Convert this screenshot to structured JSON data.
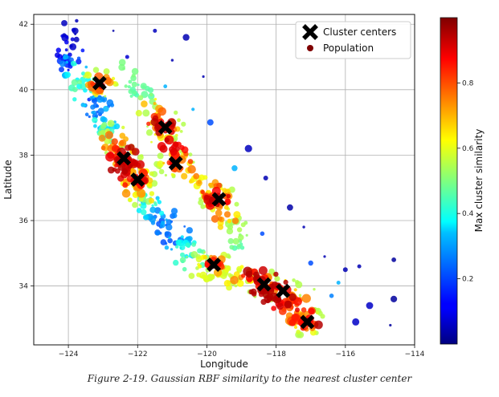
{
  "caption": "Figure 2-19. Gaussian RBF similarity to the nearest cluster center",
  "chart_data": {
    "type": "scatter",
    "xlabel": "Longitude",
    "ylabel": "Latitude",
    "xlim": [
      -125,
      -114
    ],
    "ylim": [
      32.2,
      42.3
    ],
    "xticks": [
      -124,
      -122,
      -120,
      -118,
      -116,
      -114
    ],
    "xtick_labels": [
      "−124",
      "−122",
      "−120",
      "−118",
      "−116",
      "−114"
    ],
    "yticks": [
      34,
      36,
      38,
      40,
      42
    ],
    "ytick_labels": [
      "34",
      "36",
      "38",
      "40",
      "42"
    ],
    "grid": true,
    "legend": {
      "position": "top-right",
      "entries": [
        "Cluster centers",
        "Population"
      ]
    },
    "colorbar": {
      "label": "Max cluster similarity",
      "colormap": "jet",
      "range": [
        0,
        1
      ],
      "ticks": [
        0.2,
        0.4,
        0.6,
        0.8
      ],
      "tick_labels": [
        "0.2",
        "0.4",
        "0.6",
        "0.8"
      ]
    },
    "cluster_centers": [
      {
        "lon": -123.1,
        "lat": 40.2
      },
      {
        "lon": -121.2,
        "lat": 38.85
      },
      {
        "lon": -122.4,
        "lat": 37.9
      },
      {
        "lon": -120.9,
        "lat": 37.75
      },
      {
        "lon": -122.0,
        "lat": 37.25
      },
      {
        "lon": -119.65,
        "lat": 36.65
      },
      {
        "lon": -119.8,
        "lat": 34.65
      },
      {
        "lon": -118.35,
        "lat": 34.05
      },
      {
        "lon": -117.8,
        "lat": 33.85
      },
      {
        "lon": -117.1,
        "lat": 32.9
      }
    ],
    "population_path": [
      [
        -124.1,
        41.8,
        0.05
      ],
      [
        -123.9,
        40.9,
        0.15
      ],
      [
        -123.6,
        40.3,
        0.5
      ],
      [
        -123.2,
        39.5,
        0.2
      ],
      [
        -122.9,
        38.9,
        0.35
      ],
      [
        -122.7,
        38.4,
        0.7
      ],
      [
        -122.4,
        37.9,
        0.95
      ],
      [
        -122.1,
        37.4,
        0.9
      ],
      [
        -121.9,
        36.8,
        0.55
      ],
      [
        -121.5,
        36.3,
        0.3
      ],
      [
        -121.0,
        35.6,
        0.2
      ],
      [
        -120.6,
        35.0,
        0.4
      ],
      [
        -120.0,
        34.6,
        0.6
      ],
      [
        -119.3,
        34.3,
        0.55
      ],
      [
        -118.5,
        34.1,
        0.95
      ],
      [
        -117.9,
        33.8,
        0.95
      ],
      [
        -117.4,
        33.3,
        0.7
      ],
      [
        -117.1,
        32.8,
        0.95
      ]
    ],
    "inland_path": [
      [
        -122.2,
        40.6,
        0.5
      ],
      [
        -121.8,
        39.7,
        0.45
      ],
      [
        -121.3,
        38.9,
        0.95
      ],
      [
        -120.8,
        37.9,
        0.85
      ],
      [
        -120.2,
        37.1,
        0.6
      ],
      [
        -119.7,
        36.6,
        0.95
      ],
      [
        -119.2,
        35.8,
        0.55
      ],
      [
        -118.9,
        35.3,
        0.45
      ]
    ],
    "scattered_points": [
      [
        -123.8,
        41.7,
        0.06
      ],
      [
        -122.7,
        41.8,
        0.04
      ],
      [
        -121.5,
        41.8,
        0.06
      ],
      [
        -120.6,
        41.6,
        0.05
      ],
      [
        -122.3,
        41.0,
        0.08
      ],
      [
        -121.0,
        40.9,
        0.05
      ],
      [
        -120.1,
        40.4,
        0.05
      ],
      [
        -121.2,
        40.1,
        0.3
      ],
      [
        -123.0,
        39.1,
        0.3
      ],
      [
        -120.4,
        39.4,
        0.3
      ],
      [
        -119.9,
        39.0,
        0.2
      ],
      [
        -118.8,
        38.2,
        0.06
      ],
      [
        -119.2,
        37.6,
        0.3
      ],
      [
        -118.3,
        37.3,
        0.05
      ],
      [
        -117.6,
        36.4,
        0.04
      ],
      [
        -118.4,
        35.6,
        0.2
      ],
      [
        -117.2,
        35.8,
        0.05
      ],
      [
        -116.6,
        34.9,
        0.05
      ],
      [
        -115.6,
        34.6,
        0.05
      ],
      [
        -116.2,
        34.1,
        0.3
      ],
      [
        -115.3,
        33.4,
        0.07
      ],
      [
        -115.7,
        32.9,
        0.07
      ],
      [
        -116.9,
        33.9,
        0.55
      ],
      [
        -114.6,
        34.8,
        0.03
      ],
      [
        -114.6,
        33.6,
        0.03
      ],
      [
        -114.7,
        32.8,
        0.03
      ],
      [
        -121.3,
        36.0,
        0.2
      ],
      [
        -120.5,
        35.7,
        0.25
      ],
      [
        -124.0,
        40.6,
        0.12
      ],
      [
        -123.4,
        39.7,
        0.15
      ],
      [
        -122.8,
        39.6,
        0.25
      ],
      [
        -120.9,
        39.3,
        0.55
      ],
      [
        -121.6,
        38.4,
        0.6
      ],
      [
        -116.4,
        33.7,
        0.25
      ],
      [
        -116.0,
        34.5,
        0.05
      ],
      [
        -117.0,
        34.7,
        0.2
      ]
    ]
  }
}
